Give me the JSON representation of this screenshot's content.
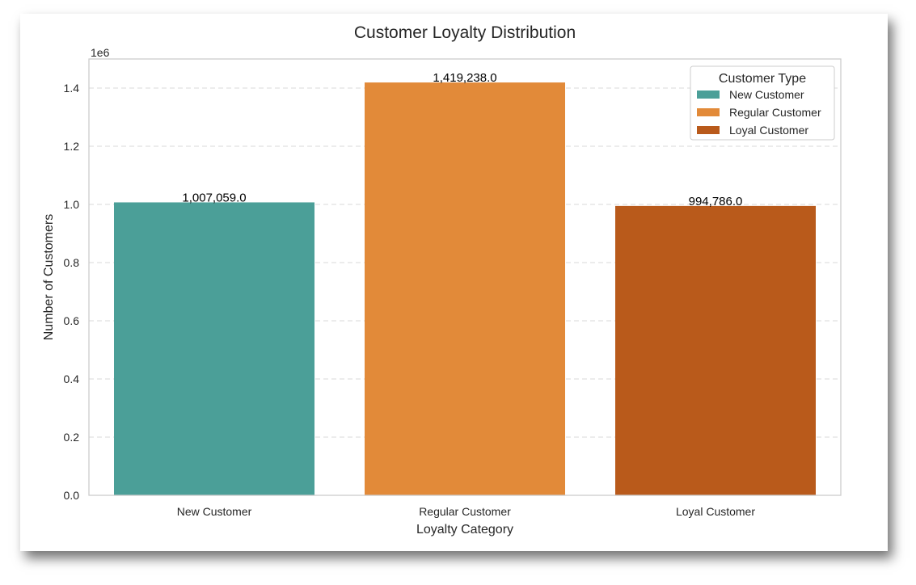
{
  "chart_data": {
    "type": "bar",
    "title": "Customer Loyalty Distribution",
    "xlabel": "Loyalty Category",
    "ylabel": "Number of Customers",
    "y_offset_label": "1e6",
    "categories": [
      "New Customer",
      "Regular Customer",
      "Loyal Customer"
    ],
    "values": [
      1007059,
      1419238,
      994786
    ],
    "value_labels": [
      "1,007,059.0",
      "1,419,238.0",
      "994,786.0"
    ],
    "colors": [
      "#4b9f98",
      "#e28a39",
      "#b95a1b"
    ],
    "ylim": [
      0,
      1500000
    ],
    "yticks": [
      0,
      200000,
      400000,
      600000,
      800000,
      1000000,
      1200000,
      1400000
    ],
    "ytick_labels": [
      "0.0",
      "0.2",
      "0.4",
      "0.6",
      "0.8",
      "1.0",
      "1.2",
      "1.4"
    ],
    "grid": "y-dashed",
    "legend": {
      "title": "Customer Type",
      "position": "top-right",
      "entries": [
        "New Customer",
        "Regular Customer",
        "Loyal Customer"
      ]
    }
  }
}
